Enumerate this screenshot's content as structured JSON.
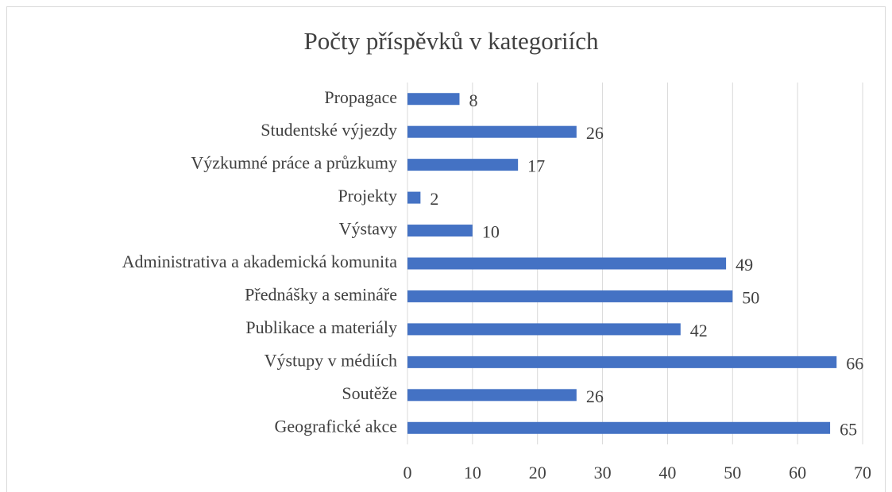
{
  "chart_data": {
    "type": "barh",
    "title": "Počty příspěvků v kategoriích",
    "categories": [
      "Propagace",
      "Studentské výjezdy",
      "Výzkumné práce a průzkumy",
      "Projekty",
      "Výstavy",
      "Administrativa a akademická komunita",
      "Přednášky a semináře",
      "Publikace a materiály",
      "Výstupy v médiích",
      "Soutěže",
      "Geografické akce"
    ],
    "values": [
      8,
      26,
      17,
      2,
      10,
      49,
      50,
      42,
      66,
      26,
      65
    ],
    "color": "#4472c4",
    "xlim": [
      0,
      70
    ],
    "xticks": [
      0,
      10,
      20,
      30,
      40,
      50,
      60,
      70
    ],
    "grid": true
  }
}
